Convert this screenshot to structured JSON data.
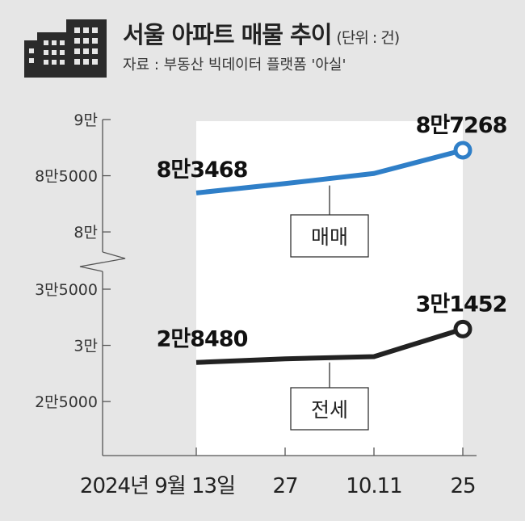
{
  "header": {
    "title": "서울 아파트 매물 추이",
    "unit": "(단위 : 건)",
    "source": "자료 : 부동산 빅데이터 플랫폼 '아실'",
    "icon": "building-icon"
  },
  "chart_data": {
    "type": "line",
    "title": "서울 아파트 매물 추이",
    "unit": "(단위 : 건)",
    "source": "자료 : 부동산 빅데이터 플랫폼 '아실'",
    "categories": [
      "2024년 9월 13일",
      "27",
      "10.11",
      "25"
    ],
    "axis_break": [
      30000,
      80000
    ],
    "y_ticks": [
      {
        "value": 90000,
        "label": "9만"
      },
      {
        "value": 85000,
        "label": "8만5000"
      },
      {
        "value": 80000,
        "label": "8만"
      },
      {
        "value": 35000,
        "label": "3만5000"
      },
      {
        "value": 30000,
        "label": "3만"
      },
      {
        "value": 25000,
        "label": "2만5000"
      }
    ],
    "series": [
      {
        "name": "매매",
        "color": "#2f7fc8",
        "values": [
          83468,
          84300,
          85200,
          87268
        ],
        "start_label": "8만3468",
        "end_label": "8만7268"
      },
      {
        "name": "전세",
        "color": "#222222",
        "values": [
          28480,
          28800,
          29000,
          31452
        ],
        "start_label": "2만8480",
        "end_label": "3만1452"
      }
    ],
    "grid": false
  }
}
